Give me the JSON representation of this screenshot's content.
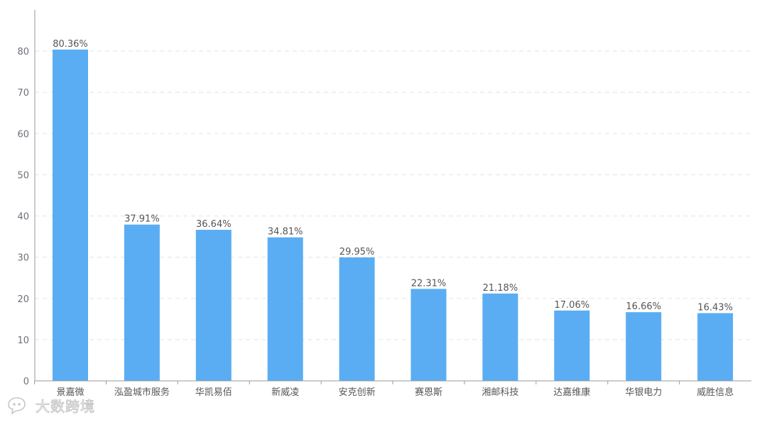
{
  "chart_data": {
    "type": "bar",
    "categories": [
      "景嘉微",
      "泓盈城市服务",
      "华凯易佰",
      "新威凌",
      "安克创新",
      "赛恩斯",
      "湘邮科技",
      "达嘉维康",
      "华银电力",
      "威胜信息"
    ],
    "values": [
      80.36,
      37.91,
      36.64,
      34.81,
      29.95,
      22.31,
      21.18,
      17.06,
      16.66,
      16.43
    ],
    "data_labels": [
      "80.36%",
      "37.91%",
      "36.64%",
      "34.81%",
      "29.95%",
      "22.31%",
      "21.18%",
      "17.06%",
      "16.66%",
      "16.43%"
    ],
    "y_ticks": [
      0,
      10,
      20,
      30,
      40,
      50,
      60,
      70,
      80
    ],
    "ylim": [
      0,
      90
    ],
    "grid": true,
    "bar_color": "#5aadf3",
    "title": "",
    "xlabel": "",
    "ylabel": ""
  },
  "watermark": {
    "text": "大数跨境",
    "icon": "chat-bubble-icon"
  }
}
